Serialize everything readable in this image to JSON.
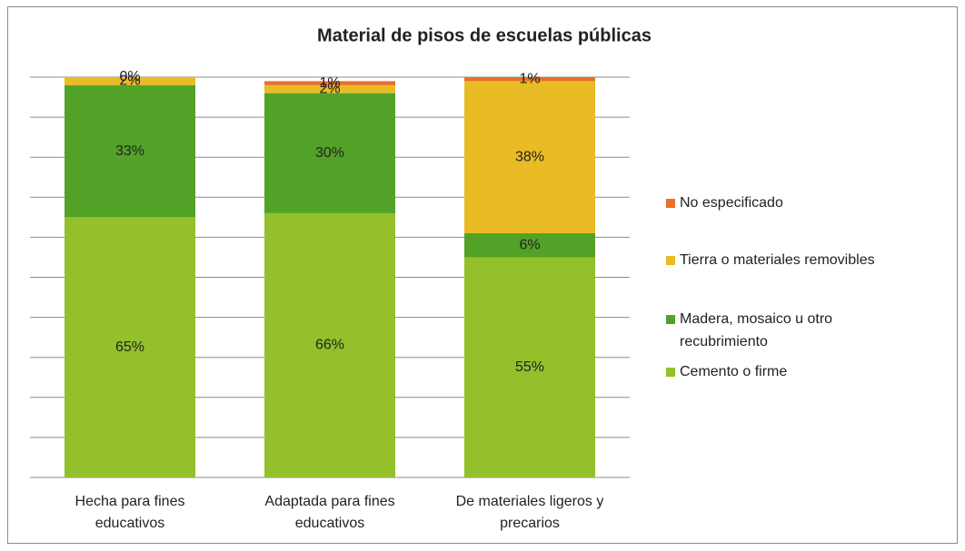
{
  "chart_data": {
    "type": "stacked_bar",
    "title": "Material de pisos de escuelas públicas",
    "categories": [
      "Hecha para fines educativos",
      "Adaptada para fines educativos",
      "De materiales ligeros y precarios"
    ],
    "series": [
      {
        "name": "Cemento o firme",
        "color": "#93c02b",
        "values": [
          65,
          66,
          55
        ],
        "value_labels": [
          "65%",
          "66%",
          "55%"
        ]
      },
      {
        "name": "Madera, mosaico u otro recubrimiento",
        "color": "#52a228",
        "values": [
          33,
          30,
          6
        ],
        "value_labels": [
          "33%",
          "30%",
          "6%"
        ]
      },
      {
        "name": "Tierra o materiales removibles",
        "color": "#e9bb25",
        "values": [
          2,
          2,
          38
        ],
        "value_labels": [
          "2%",
          "2%",
          "38%"
        ]
      },
      {
        "name": "No especificado",
        "color": "#e8702a",
        "values": [
          0,
          1,
          1
        ],
        "value_labels": [
          "0%",
          "1%",
          "1%"
        ]
      }
    ],
    "ylim": [
      0,
      100
    ],
    "yticks": [
      0,
      10,
      20,
      30,
      40,
      50,
      60,
      70,
      80,
      90,
      100
    ],
    "grid": true,
    "legend": "right"
  }
}
